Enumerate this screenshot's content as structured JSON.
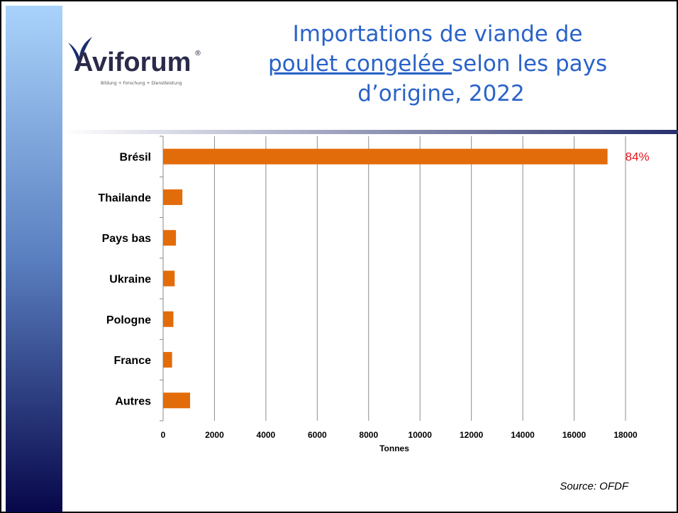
{
  "logo": {
    "name": "Aviforum",
    "registered": "®",
    "tagline": "Bildung + Forschung + Dienstleistung"
  },
  "chart_data": {
    "type": "barh",
    "title": [
      "Importations de viande de",
      "poulet congelée ",
      "selon les pays",
      "d’origine, 2022"
    ],
    "categories": [
      "Brésil",
      "Thailande",
      "Pays bas",
      "Ukraine",
      "Pologne",
      "France",
      "Autres"
    ],
    "values": [
      17300,
      750,
      500,
      450,
      400,
      350,
      1050
    ],
    "color": "#e36c0a",
    "annotation": "84%",
    "xlabel": "Tonnes",
    "xlim": [
      0,
      18000
    ],
    "xticks": [
      0,
      2000,
      4000,
      6000,
      8000,
      10000,
      12000,
      14000,
      16000,
      18000
    ],
    "grid": true,
    "source": "Source: OFDF"
  }
}
